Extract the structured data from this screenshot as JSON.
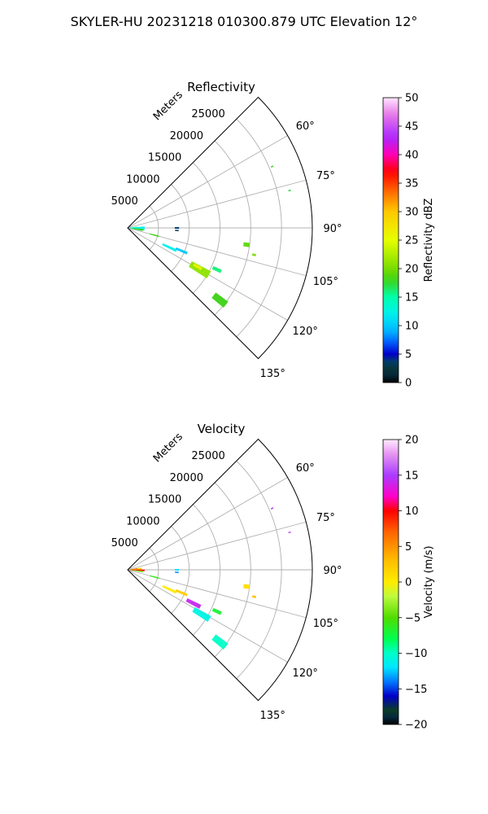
{
  "figure_title": "SKYLER-HU  20231218  010300.879 UTC Elevation 12°",
  "chart_data": [
    {
      "type": "heatmap",
      "subtype": "polar-sector",
      "title": "Reflectivity",
      "radial_label": "Meters",
      "radial_ticks": [
        5000,
        10000,
        15000,
        20000,
        25000
      ],
      "radial_tick_labels": [
        "5000",
        "10000",
        "15000",
        "20000",
        "25000"
      ],
      "r_max": 30000,
      "azimuth_range": [
        45,
        135
      ],
      "azimuth_ticks": [
        60,
        75,
        90,
        105,
        120,
        135
      ],
      "azimuth_tick_labels": [
        "60°",
        "75°",
        "90°",
        "105°",
        "120°",
        "135°"
      ],
      "grid": true,
      "colorbar": {
        "label": "Reflectivity dBZ",
        "min": 0,
        "max": 50,
        "ticks": [
          0,
          5,
          10,
          15,
          20,
          25,
          30,
          35,
          40,
          45,
          50
        ],
        "tick_labels": [
          "0",
          "5",
          "10",
          "15",
          "20",
          "25",
          "30",
          "35",
          "40",
          "45",
          "50"
        ]
      },
      "echoes": [
        {
          "az": 92,
          "r": 1500,
          "az_width": 14,
          "r_width": 2500,
          "value": 12
        },
        {
          "az": 98,
          "r": 1600,
          "az_width": 8,
          "r_width": 1800,
          "value": 18
        },
        {
          "az": 88,
          "r": 1000,
          "az_width": 10,
          "r_width": 1200,
          "value": 14
        },
        {
          "az": 90,
          "r": 8000,
          "az_width": 2,
          "r_width": 700,
          "value": 4
        },
        {
          "az": 93,
          "r": 8000,
          "az_width": 1.5,
          "r_width": 600,
          "value": 3
        },
        {
          "az": 105,
          "r": 4500,
          "az_width": 2.5,
          "r_width": 1500,
          "value": 18
        },
        {
          "az": 115,
          "r": 7500,
          "az_width": 3,
          "r_width": 2500,
          "value": 12
        },
        {
          "az": 113,
          "r": 9500,
          "az_width": 2.5,
          "r_width": 2000,
          "value": 10
        },
        {
          "az": 120,
          "r": 13500,
          "az_width": 5,
          "r_width": 3500,
          "value": 21
        },
        {
          "az": 119,
          "r": 13000,
          "az_width": 2,
          "r_width": 1500,
          "value": 26
        },
        {
          "az": 128,
          "r": 19000,
          "az_width": 3.5,
          "r_width": 2500,
          "value": 18
        },
        {
          "az": 115,
          "r": 16000,
          "az_width": 2,
          "r_width": 1500,
          "value": 16
        },
        {
          "az": 98,
          "r": 19500,
          "az_width": 2,
          "r_width": 1000,
          "value": 19
        },
        {
          "az": 102,
          "r": 21000,
          "az_width": 1,
          "r_width": 600,
          "value": 20
        },
        {
          "az": 67,
          "r": 25500,
          "az_width": 0.5,
          "r_width": 400,
          "value": 18
        },
        {
          "az": 77,
          "r": 27000,
          "az_width": 0.5,
          "r_width": 400,
          "value": 17
        }
      ]
    },
    {
      "type": "heatmap",
      "subtype": "polar-sector",
      "title": "Velocity",
      "radial_label": "Meters",
      "radial_ticks": [
        5000,
        10000,
        15000,
        20000,
        25000
      ],
      "radial_tick_labels": [
        "5000",
        "10000",
        "15000",
        "20000",
        "25000"
      ],
      "r_max": 30000,
      "azimuth_range": [
        45,
        135
      ],
      "azimuth_ticks": [
        60,
        75,
        90,
        105,
        120,
        135
      ],
      "azimuth_tick_labels": [
        "60°",
        "75°",
        "90°",
        "105°",
        "120°",
        "135°"
      ],
      "grid": true,
      "colorbar": {
        "label": "Velocity (m/s)",
        "min": -20,
        "max": 20,
        "ticks": [
          -20,
          -15,
          -10,
          -5,
          0,
          5,
          10,
          15,
          20
        ],
        "tick_labels": [
          "−20",
          "−15",
          "−10",
          "−5",
          "0",
          "5",
          "10",
          "15",
          "20"
        ]
      },
      "echoes": [
        {
          "az": 86,
          "r": 1300,
          "az_width": 10,
          "r_width": 2000,
          "value": 2
        },
        {
          "az": 92,
          "r": 1500,
          "az_width": 6,
          "r_width": 2500,
          "value": 10
        },
        {
          "az": 97,
          "r": 1500,
          "az_width": 6,
          "r_width": 2000,
          "value": -4
        },
        {
          "az": 83,
          "r": 1000,
          "az_width": 4,
          "r_width": 1200,
          "value": 8
        },
        {
          "az": 90,
          "r": 8000,
          "az_width": 2,
          "r_width": 700,
          "value": -12
        },
        {
          "az": 93,
          "r": 8000,
          "az_width": 1.5,
          "r_width": 600,
          "value": -14
        },
        {
          "az": 105,
          "r": 4500,
          "az_width": 2.5,
          "r_width": 1500,
          "value": -6
        },
        {
          "az": 115,
          "r": 7500,
          "az_width": 3,
          "r_width": 2500,
          "value": 0
        },
        {
          "az": 113,
          "r": 9500,
          "az_width": 2.5,
          "r_width": 2000,
          "value": 2
        },
        {
          "az": 117,
          "r": 12000,
          "az_width": 3,
          "r_width": 2500,
          "value": 14
        },
        {
          "az": 121,
          "r": 14000,
          "az_width": 4,
          "r_width": 3000,
          "value": -11
        },
        {
          "az": 128,
          "r": 19000,
          "az_width": 3.5,
          "r_width": 2500,
          "value": -10
        },
        {
          "az": 115,
          "r": 16000,
          "az_width": 2,
          "r_width": 1500,
          "value": -7
        },
        {
          "az": 98,
          "r": 19500,
          "az_width": 2,
          "r_width": 1000,
          "value": 1
        },
        {
          "az": 102,
          "r": 21000,
          "az_width": 1,
          "r_width": 600,
          "value": 3
        },
        {
          "az": 67,
          "r": 25500,
          "az_width": 0.5,
          "r_width": 400,
          "value": 15
        },
        {
          "az": 77,
          "r": 27000,
          "az_width": 0.5,
          "r_width": 400,
          "value": 16
        }
      ]
    }
  ]
}
